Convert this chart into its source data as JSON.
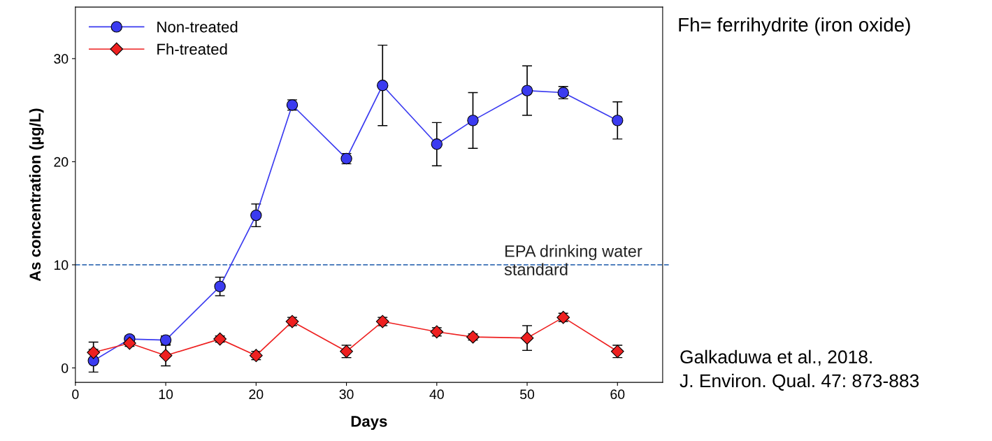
{
  "chart_data": {
    "type": "line",
    "xlabel": "Days",
    "ylabel": "As concentration (µg/L)",
    "xlim": [
      0,
      65
    ],
    "ylim": [
      -1.4,
      35
    ],
    "xticks": [
      0,
      10,
      20,
      30,
      40,
      50,
      60
    ],
    "yticks": [
      0,
      10,
      20,
      30
    ],
    "grid": false,
    "legend": "top left",
    "series": [
      {
        "name": "Non-treated",
        "color": "#3b3bf0",
        "marker": "circle",
        "x": [
          2,
          6,
          10,
          16,
          20,
          24,
          30,
          34,
          40,
          44,
          50,
          54,
          60
        ],
        "values": [
          0.7,
          2.8,
          2.7,
          7.9,
          14.8,
          25.5,
          20.3,
          27.4,
          21.7,
          24.0,
          26.9,
          26.7,
          24.0
        ],
        "errors": [
          1.1,
          0.3,
          0.4,
          0.9,
          1.1,
          0.5,
          0.5,
          3.9,
          2.1,
          2.7,
          2.4,
          0.6,
          1.8
        ]
      },
      {
        "name": "Fh-treated",
        "color": "#ee2020",
        "marker": "diamond",
        "x": [
          2,
          6,
          10,
          16,
          20,
          24,
          30,
          34,
          40,
          44,
          50,
          54,
          60
        ],
        "values": [
          1.5,
          2.4,
          1.2,
          2.8,
          1.2,
          4.5,
          1.6,
          4.5,
          3.5,
          3.0,
          2.9,
          4.9,
          1.6
        ],
        "errors": [
          1.0,
          0.3,
          1.0,
          0.3,
          0.4,
          0.4,
          0.6,
          0.4,
          0.4,
          0.3,
          1.2,
          0.4,
          0.6
        ]
      }
    ],
    "ref_lines": [
      {
        "axis": "y",
        "value": 10,
        "label": "EPA drinking water\nstandard",
        "color": "#3a6fb5",
        "line_style": "dashed"
      }
    ],
    "annotations": [
      "Fh= ferrihydrite (iron oxide)",
      "Galkaduwa et al., 2018.\nJ. Environ. Qual. 47: 873-883"
    ]
  }
}
